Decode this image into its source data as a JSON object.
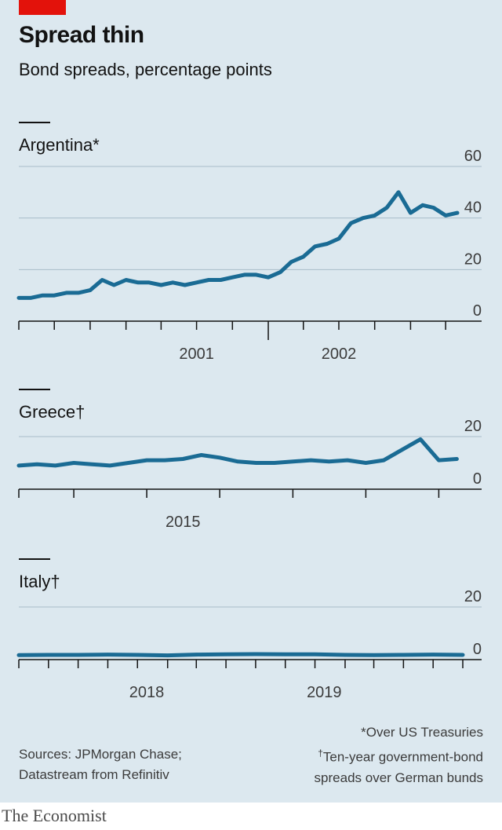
{
  "title": "Spread thin",
  "subtitle": "Bond spreads, percentage points",
  "chart_data": [
    {
      "type": "line",
      "title": "Argentina*",
      "ylim": [
        0,
        60
      ],
      "yticks": [
        "0",
        "20",
        "40",
        "60"
      ],
      "xticks": [
        "2001",
        "2002"
      ],
      "grid": true,
      "color": "#1a6b94",
      "x": [
        "2000-04-01",
        "2000-05-01",
        "2000-06-01",
        "2000-07-01",
        "2000-08-01",
        "2000-09-01",
        "2000-10-01",
        "2000-11-01",
        "2000-12-01",
        "2001-01-01",
        "2001-02-01",
        "2001-03-01",
        "2001-04-01",
        "2001-05-01",
        "2001-06-01",
        "2001-07-01",
        "2001-08-01",
        "2001-09-01",
        "2001-10-01",
        "2001-11-01",
        "2001-12-01",
        "2002-01-01",
        "2002-02-01",
        "2002-03-01",
        "2002-04-01",
        "2002-05-01",
        "2002-06-01",
        "2002-07-01",
        "2002-08-01",
        "2002-09-01",
        "2002-10-01",
        "2002-11-01",
        "2002-12-01",
        "2003-01-01",
        "2003-02-01",
        "2003-03-01",
        "2003-04-01",
        "2003-05-01"
      ],
      "values": [
        9,
        9,
        10,
        10,
        11,
        11,
        12,
        16,
        14,
        16,
        15,
        15,
        14,
        15,
        14,
        15,
        16,
        16,
        17,
        18,
        18,
        17,
        19,
        23,
        25,
        29,
        30,
        32,
        38,
        40,
        41,
        44,
        50,
        42,
        45,
        44,
        41,
        42
      ]
    },
    {
      "type": "line",
      "title": "Greece†",
      "ylim": [
        0,
        20
      ],
      "yticks": [
        "0",
        "20"
      ],
      "xticks": [
        "2015"
      ],
      "grid": true,
      "color": "#1a6b94",
      "x": [
        "2013-04-01",
        "2013-07-01",
        "2013-10-01",
        "2014-01-01",
        "2014-04-01",
        "2014-07-01",
        "2014-10-01",
        "2015-01-01",
        "2015-04-01",
        "2015-07-01",
        "2015-10-01",
        "2016-01-01",
        "2016-04-01",
        "2016-07-01",
        "2016-10-01",
        "2017-01-01",
        "2017-04-01",
        "2017-07-01",
        "2017-10-01",
        "2018-01-01",
        "2018-04-01",
        "2018-07-01",
        "2018-10-01",
        "2019-01-01",
        "2019-04-01"
      ],
      "values": [
        9,
        9.5,
        9,
        10,
        9.5,
        9,
        10,
        11,
        11,
        11.5,
        13,
        12,
        10.5,
        10,
        10,
        10.5,
        11,
        10.5,
        11,
        10,
        11,
        15,
        19,
        11,
        11.5
      ]
    },
    {
      "type": "line",
      "title": "Italy†",
      "ylim": [
        0,
        20
      ],
      "yticks": [
        "0",
        "20"
      ],
      "xticks": [
        "2018",
        "2019"
      ],
      "grid": true,
      "color": "#1a6b94",
      "x": [
        "2017-04-01",
        "2017-06-01",
        "2017-08-01",
        "2017-10-01",
        "2017-12-01",
        "2018-02-01",
        "2018-04-01",
        "2018-06-01",
        "2018-08-01",
        "2018-10-01",
        "2018-12-01",
        "2019-02-01",
        "2019-04-01",
        "2019-06-01",
        "2019-08-01",
        "2019-10-01"
      ],
      "values": [
        1.7,
        1.8,
        1.8,
        1.9,
        1.8,
        1.6,
        1.9,
        2.0,
        2.1,
        2.0,
        2.0,
        1.8,
        1.7,
        1.8,
        1.9,
        1.8
      ]
    }
  ],
  "notes": {
    "line1": "*Over US Treasuries",
    "mark": "†",
    "line2": "Ten-year government-bond",
    "line3": "spreads over German bunds"
  },
  "sources": {
    "line1": "Sources: JPMorgan Chase;",
    "line2": "Datastream from Refinitiv"
  },
  "brand": "The Economist"
}
